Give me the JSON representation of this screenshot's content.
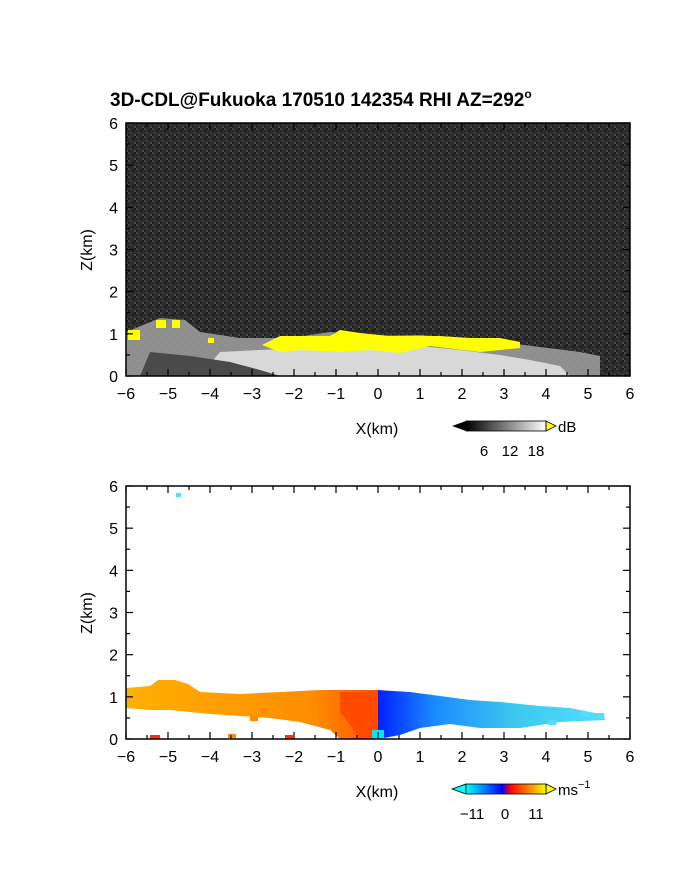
{
  "title": "3D-CDL@Fukuoka 170510 142354 RHI AZ=292",
  "title_superscript": "o",
  "chart_data": [
    {
      "type": "heatmap",
      "panel": "backscatter",
      "xlabel": "X(km)",
      "ylabel": "Z(km)",
      "xlim": [
        -6,
        6
      ],
      "ylim": [
        0,
        6
      ],
      "xticks": [
        "-6",
        "-5",
        "-4",
        "-3",
        "-2",
        "-1",
        "0",
        "1",
        "2",
        "3",
        "4",
        "5",
        "6"
      ],
      "yticks": [
        "0",
        "1",
        "2",
        "3",
        "4",
        "5",
        "6"
      ],
      "colorbar": {
        "label": "dB",
        "ticks": [
          "6",
          "12",
          "18"
        ],
        "colors": [
          "#000000",
          "#ffffff",
          "#ffff00"
        ]
      },
      "regions": [
        {
          "name": "noise background",
          "x": [
            -6,
            6
          ],
          "z": [
            0,
            6
          ],
          "value": "noise (dark grey speckle)"
        },
        {
          "name": "aerosol layer",
          "x": [
            -6,
            5.8
          ],
          "z_top_profile": [
            [
              -6,
              1.05
            ],
            [
              -5.2,
              1.35
            ],
            [
              -4.5,
              1.25
            ],
            [
              -4,
              0.95
            ],
            [
              -3,
              0.9
            ],
            [
              -2,
              0.9
            ],
            [
              -1,
              1.05
            ],
            [
              0,
              0.95
            ],
            [
              1,
              0.95
            ],
            [
              2,
              0.9
            ],
            [
              3,
              0.85
            ],
            [
              4,
              0.7
            ],
            [
              5,
              0.55
            ],
            [
              5.8,
              0.45
            ]
          ],
          "value": "12-18 dB"
        },
        {
          "name": "saturated band",
          "x": [
            -3,
            4
          ],
          "z": [
            0.6,
            1.05
          ],
          "value": ">18 dB (yellow)"
        }
      ]
    },
    {
      "type": "heatmap",
      "panel": "doppler velocity",
      "xlabel": "X(km)",
      "ylabel": "Z(km)",
      "xlim": [
        -6,
        6
      ],
      "ylim": [
        0,
        6
      ],
      "xticks": [
        "-6",
        "-5",
        "-4",
        "-3",
        "-2",
        "-1",
        "0",
        "1",
        "2",
        "3",
        "4",
        "5",
        "6"
      ],
      "yticks": [
        "0",
        "1",
        "2",
        "3",
        "4",
        "5",
        "6"
      ],
      "colorbar": {
        "label": "ms",
        "label_superscript": "−1",
        "ticks": [
          "−11",
          "0",
          "11"
        ],
        "colors": [
          "#00ffff",
          "#0000ff",
          "#ff0000",
          "#ffff00"
        ]
      },
      "regions": [
        {
          "name": "west side",
          "x": [
            -6,
            0
          ],
          "z": [
            0,
            1.3
          ],
          "value": "positive (orange)"
        },
        {
          "name": "near radar west",
          "x": [
            -1,
            0
          ],
          "z": [
            0,
            1.1
          ],
          "value": "~+3 to +6 (red-orange)"
        },
        {
          "name": "near radar east",
          "x": [
            0,
            1
          ],
          "z": [
            0,
            1.1
          ],
          "value": "~-3 to -6 (blue)"
        },
        {
          "name": "east side",
          "x": [
            1,
            5.6
          ],
          "z": [
            0,
            1.0
          ],
          "value": "~-9 to -11 (cyan)"
        }
      ]
    }
  ]
}
